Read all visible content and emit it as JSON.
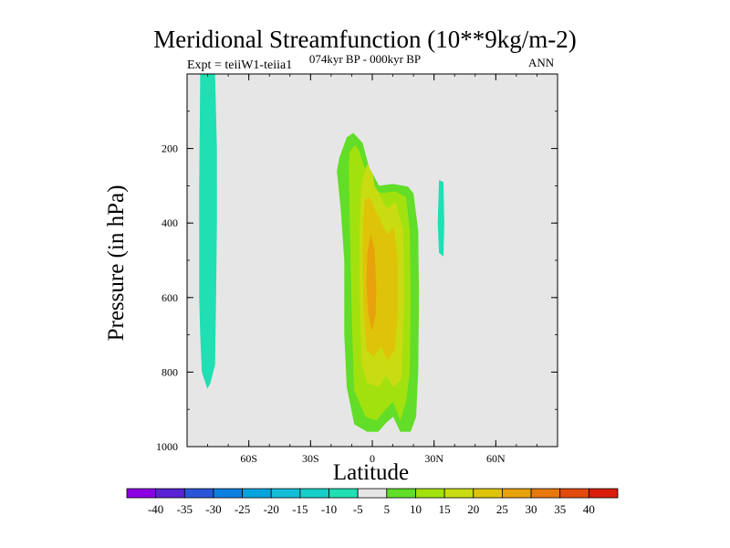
{
  "chart_data": {
    "type": "heatmap",
    "title": "Meridional Streamfunction (10**9kg/m-2)",
    "left_string": "Expt = teiiW1-teiia1",
    "center_string": "074kyr BP - 000kyr BP",
    "right_string": "ANN",
    "xlabel": "Latitude",
    "ylabel": "Pressure (in hPa)",
    "xlim": [
      -90,
      90
    ],
    "ylim": [
      1000,
      0
    ],
    "y_reversed": true,
    "x_ticks": [
      {
        "value": -60,
        "label": "60S"
      },
      {
        "value": -30,
        "label": "30S"
      },
      {
        "value": 0,
        "label": "0"
      },
      {
        "value": 30,
        "label": "30N"
      },
      {
        "value": 60,
        "label": "60N"
      }
    ],
    "y_ticks": [
      {
        "value": 200,
        "label": "200"
      },
      {
        "value": 400,
        "label": "400"
      },
      {
        "value": 600,
        "label": "600"
      },
      {
        "value": 800,
        "label": "800"
      },
      {
        "value": 1000,
        "label": "1000"
      }
    ],
    "background_color": "#e6e6e6",
    "colorbar": {
      "labels": [
        "-40",
        "-35",
        "-30",
        "-25",
        "-20",
        "-15",
        "-10",
        "-5",
        "5",
        "10",
        "15",
        "20",
        "25",
        "30",
        "35",
        "40"
      ],
      "colors": [
        "#8b00e3",
        "#5a22d6",
        "#2b55d8",
        "#0c7fe0",
        "#06a3dc",
        "#13bdd6",
        "#14cfc7",
        "#20dfb2",
        "#e6e6e6",
        "#62dd28",
        "#a3e10e",
        "#c9dc11",
        "#dfc308",
        "#e8a20c",
        "#e6780e",
        "#e24b0c",
        "#d81e0b"
      ]
    },
    "regions": [
      {
        "name": "negative-cell-high-latitude-south",
        "level": "-10 to -5",
        "color": "#20dfb2",
        "points": [
          [
            -83.6,
            0
          ],
          [
            -76.4,
            0
          ],
          [
            -75.5,
            200
          ],
          [
            -75.5,
            400
          ],
          [
            -75.9,
            600
          ],
          [
            -76.4,
            780
          ],
          [
            -78.7,
            830
          ],
          [
            -80.1,
            845
          ],
          [
            -82.8,
            800
          ],
          [
            -83.6,
            700
          ],
          [
            -84.1,
            600
          ],
          [
            -84.1,
            300
          ]
        ]
      },
      {
        "name": "negative-cell-30N",
        "level": "-10 to -5",
        "color": "#20dfb2",
        "points": [
          [
            32.4,
            285
          ],
          [
            34.6,
            290
          ],
          [
            35,
            400
          ],
          [
            34.6,
            490
          ],
          [
            32.4,
            480
          ],
          [
            31.8,
            400
          ]
        ]
      },
      {
        "name": "positive-cell-5-10",
        "level": "5 to 10",
        "color": "#62dd28",
        "points": [
          [
            -16,
            225
          ],
          [
            -12.4,
            170
          ],
          [
            -9.2,
            158
          ],
          [
            -4.7,
            185
          ],
          [
            -1.6,
            250
          ],
          [
            3.3,
            300
          ],
          [
            10.1,
            295
          ],
          [
            17.3,
            302
          ],
          [
            20,
            320
          ],
          [
            22.3,
            420
          ],
          [
            22.7,
            600
          ],
          [
            22.3,
            800
          ],
          [
            21.3,
            920
          ],
          [
            18.6,
            960
          ],
          [
            13.6,
            960
          ],
          [
            10.1,
            920
          ],
          [
            6.9,
            935
          ],
          [
            2.9,
            960
          ],
          [
            -2.5,
            960
          ],
          [
            -8.8,
            940
          ],
          [
            -12.4,
            840
          ],
          [
            -13.6,
            700
          ],
          [
            -13.6,
            500
          ],
          [
            -15.4,
            360
          ],
          [
            -17.2,
            260
          ]
        ]
      },
      {
        "name": "positive-cell-10-15",
        "level": "10 to 15",
        "color": "#a3e10e",
        "points": [
          [
            -11.1,
            210
          ],
          [
            -8.3,
            190
          ],
          [
            -6.5,
            205
          ],
          [
            -3.8,
            250
          ],
          [
            -0.7,
            300
          ],
          [
            4.2,
            320
          ],
          [
            11,
            315
          ],
          [
            16.4,
            330
          ],
          [
            18.2,
            420
          ],
          [
            18.6,
            600
          ],
          [
            18.2,
            800
          ],
          [
            16.4,
            880
          ],
          [
            13.6,
            930
          ],
          [
            10.1,
            880
          ],
          [
            6.5,
            900
          ],
          [
            2,
            930
          ],
          [
            -3.3,
            920
          ],
          [
            -8.8,
            850
          ],
          [
            -9.7,
            700
          ],
          [
            -10.6,
            500
          ],
          [
            -11.1,
            350
          ],
          [
            -11.5,
            250
          ]
        ]
      },
      {
        "name": "positive-cell-15-20",
        "level": "15 to 20",
        "color": "#c9dc11",
        "points": [
          [
            -4.7,
            280
          ],
          [
            -2.4,
            240
          ],
          [
            0.2,
            270
          ],
          [
            1.1,
            300
          ],
          [
            6.9,
            360
          ],
          [
            11.5,
            345
          ],
          [
            15,
            420
          ],
          [
            15.5,
            600
          ],
          [
            14.1,
            820
          ],
          [
            10.5,
            840
          ],
          [
            6.5,
            810
          ],
          [
            3.3,
            840
          ],
          [
            -2.4,
            830
          ],
          [
            -5.2,
            780
          ],
          [
            -6.1,
            600
          ],
          [
            -6.1,
            420
          ],
          [
            -5.6,
            320
          ]
        ]
      },
      {
        "name": "positive-cell-20-25",
        "level": "20 to 25",
        "color": "#dfc308",
        "points": [
          [
            -3.8,
            340
          ],
          [
            -1.6,
            330
          ],
          [
            2.9,
            380
          ],
          [
            7.3,
            430
          ],
          [
            10.5,
            410
          ],
          [
            12.3,
            500
          ],
          [
            12.3,
            650
          ],
          [
            11,
            740
          ],
          [
            7.3,
            770
          ],
          [
            4.2,
            730
          ],
          [
            0.7,
            760
          ],
          [
            -2.9,
            740
          ],
          [
            -4.3,
            620
          ],
          [
            -4.7,
            450
          ]
        ]
      },
      {
        "name": "positive-cell-25-30",
        "level": "25 to 30",
        "color": "#e8a20c",
        "points": [
          [
            -2.4,
            480
          ],
          [
            -0.7,
            430
          ],
          [
            1.1,
            470
          ],
          [
            2,
            580
          ],
          [
            1.6,
            650
          ],
          [
            -0.2,
            690
          ],
          [
            -2,
            640
          ],
          [
            -2.9,
            560
          ]
        ]
      }
    ]
  }
}
